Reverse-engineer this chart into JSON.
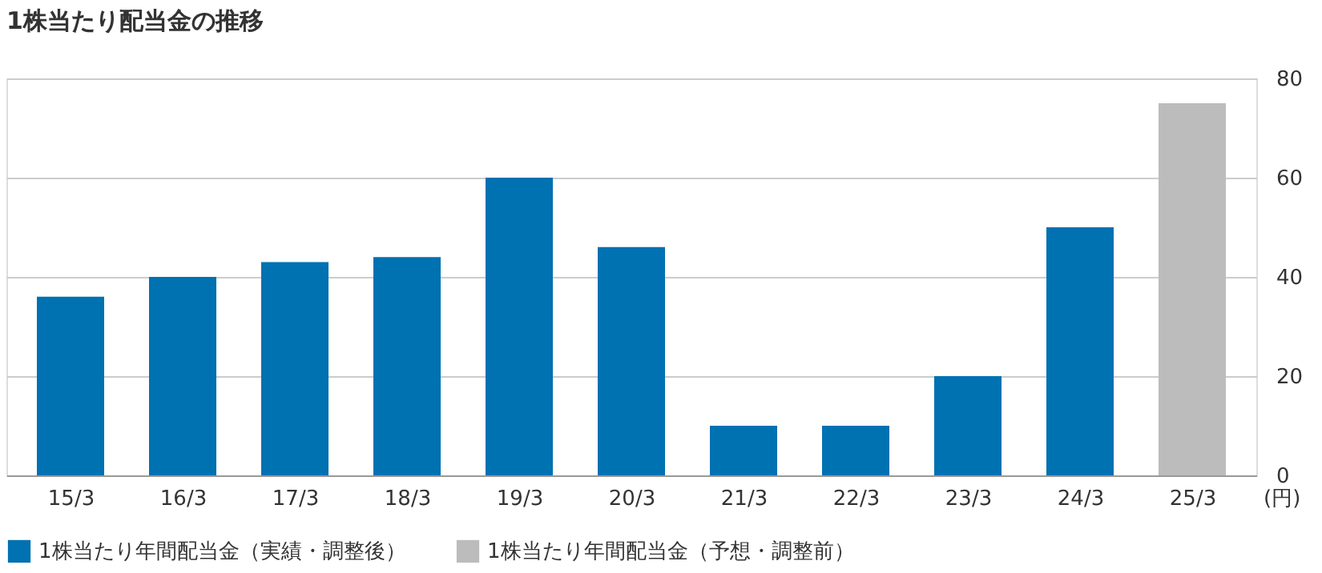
{
  "chart_data": {
    "type": "bar",
    "title": "1株当たり配当金の推移",
    "ylabel": "(円)",
    "categories": [
      "15/3",
      "16/3",
      "17/3",
      "18/3",
      "19/3",
      "20/3",
      "21/3",
      "22/3",
      "23/3",
      "24/3",
      "25/3"
    ],
    "series": [
      {
        "name": "1株当たり年間配当金（実績・調整後）",
        "color": "#0071b1",
        "values": [
          36,
          40,
          43,
          44,
          60,
          46,
          10,
          10,
          20,
          50,
          null
        ]
      },
      {
        "name": "1株当たり年間配当金（予想・調整前）",
        "color": "#bcbcbc",
        "values": [
          null,
          null,
          null,
          null,
          null,
          null,
          null,
          null,
          null,
          null,
          75
        ]
      }
    ],
    "ylim": [
      0,
      80
    ],
    "yticks": [
      0,
      20,
      40,
      60,
      80
    ],
    "grid": "y",
    "legend": "bottom"
  }
}
